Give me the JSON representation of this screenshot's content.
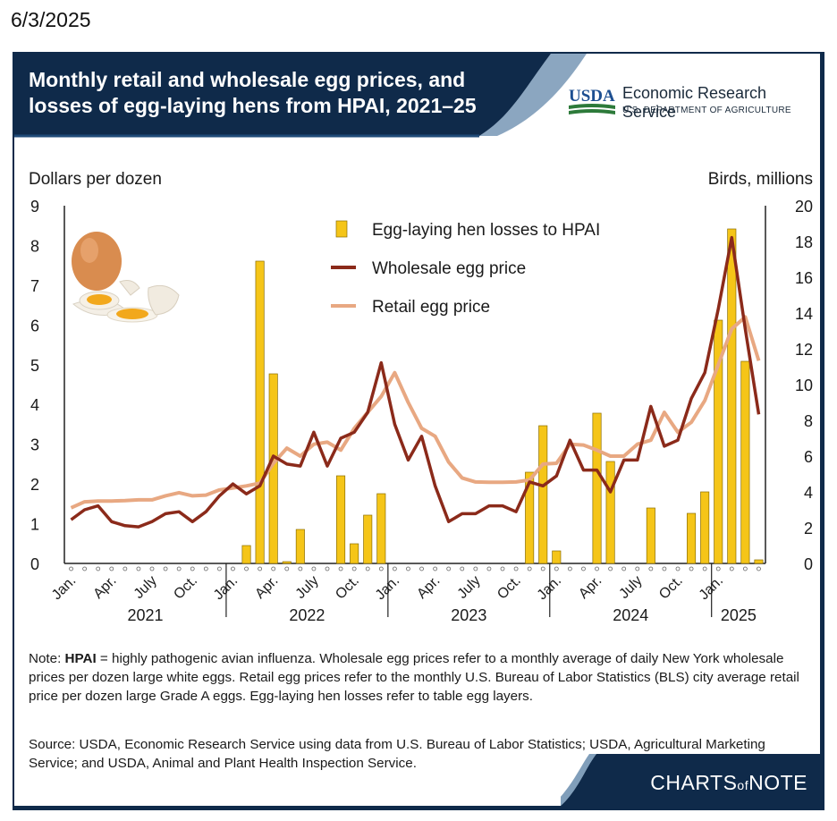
{
  "page_date": "6/3/2025",
  "title": "Monthly retail and wholesale egg prices, and losses of egg-laying hens from HPAI, 2021–25",
  "logo": {
    "usda_text": "USDA",
    "agency": "Economic Research Service",
    "department": "U.S. DEPARTMENT OF AGRICULTURE"
  },
  "colors": {
    "navy": "#0f2a4a",
    "bars": "#f5c518",
    "bar_outline": "#8a6d00",
    "wholesale": "#8b2a1a",
    "retail": "#e8a882"
  },
  "note": {
    "prefix": "Note: ",
    "term": "HPAI",
    "text": " = highly pathogenic avian influenza. Wholesale egg prices refer to a monthly average of daily New York wholesale prices per dozen large white eggs. Retail egg prices refer to the monthly U.S. Bureau of Labor Statistics (BLS) city average retail price per dozen large Grade A eggs. Egg-laying hen losses refer to table egg layers."
  },
  "source": "Source: USDA, Economic Research Service using data from U.S. Bureau of Labor Statistics; USDA, Agricultural Marketing Service; and USDA, Animal and Plant Health Inspection Service.",
  "footer": {
    "brand_left": "CHARTS",
    "brand_of": "of",
    "brand_right": "NOTE"
  },
  "chart_data": {
    "type": "bar+line",
    "ylabel_left": "Dollars per dozen",
    "ylabel_right": "Birds, millions",
    "ylim_left": [
      0,
      9
    ],
    "ylim_right": [
      0,
      20
    ],
    "yticks_left": [
      "0",
      "1",
      "2",
      "3",
      "4",
      "5",
      "6",
      "7",
      "8",
      "9"
    ],
    "yticks_right": [
      "0",
      "2",
      "4",
      "6",
      "8",
      "10",
      "12",
      "14",
      "16",
      "18",
      "20"
    ],
    "month_labels": [
      {
        "i": 0,
        "label": "Jan."
      },
      {
        "i": 3,
        "label": "Apr."
      },
      {
        "i": 6,
        "label": "July"
      },
      {
        "i": 9,
        "label": "Oct."
      },
      {
        "i": 12,
        "label": "Jan."
      },
      {
        "i": 15,
        "label": "Apr."
      },
      {
        "i": 18,
        "label": "July"
      },
      {
        "i": 21,
        "label": "Oct."
      },
      {
        "i": 24,
        "label": "Jan."
      },
      {
        "i": 27,
        "label": "Apr."
      },
      {
        "i": 30,
        "label": "July"
      },
      {
        "i": 33,
        "label": "Oct."
      },
      {
        "i": 36,
        "label": "Jan."
      },
      {
        "i": 39,
        "label": "Apr."
      },
      {
        "i": 42,
        "label": "July"
      },
      {
        "i": 45,
        "label": "Oct."
      },
      {
        "i": 48,
        "label": "Jan."
      }
    ],
    "years": [
      {
        "label": "2021",
        "start": 0,
        "end": 11
      },
      {
        "label": "2022",
        "start": 12,
        "end": 23
      },
      {
        "label": "2023",
        "start": 24,
        "end": 35
      },
      {
        "label": "2024",
        "start": 36,
        "end": 47
      },
      {
        "label": "2025",
        "start": 48,
        "end": 51
      }
    ],
    "legend": [
      {
        "key": "bars",
        "label": "Egg-laying hen losses to HPAI"
      },
      {
        "key": "wholesale",
        "label": "Wholesale egg price"
      },
      {
        "key": "retail",
        "label": "Retail egg price"
      }
    ],
    "series": [
      {
        "name": "Egg-laying hen losses to HPAI",
        "type": "bar",
        "axis": "right",
        "values": [
          0,
          0,
          0,
          0,
          0,
          0,
          0,
          0,
          0,
          0,
          0,
          0,
          0,
          1.0,
          16.9,
          10.6,
          0.1,
          1.9,
          0,
          0,
          4.9,
          1.1,
          2.7,
          3.9,
          0,
          0,
          0,
          0,
          0,
          0,
          0,
          0,
          0,
          0,
          5.1,
          7.7,
          0.7,
          0,
          0,
          8.4,
          5.7,
          0,
          0,
          3.1,
          0,
          0,
          2.8,
          4.0,
          13.6,
          18.7,
          11.3,
          0.2
        ]
      },
      {
        "name": "Wholesale egg price",
        "type": "line",
        "axis": "left",
        "values": [
          1.1,
          1.35,
          1.45,
          1.05,
          0.95,
          0.92,
          1.05,
          1.25,
          1.3,
          1.05,
          1.3,
          1.7,
          2.0,
          1.75,
          1.95,
          2.7,
          2.5,
          2.45,
          3.3,
          2.45,
          3.15,
          3.3,
          3.8,
          5.05,
          3.5,
          2.6,
          3.2,
          1.95,
          1.05,
          1.25,
          1.25,
          1.45,
          1.45,
          1.3,
          2.05,
          1.95,
          2.2,
          3.1,
          2.35,
          2.35,
          1.8,
          2.6,
          2.6,
          3.95,
          2.95,
          3.1,
          4.15,
          4.8,
          6.4,
          8.2,
          5.9,
          3.75
        ]
      },
      {
        "name": "Retail egg price",
        "type": "line",
        "axis": "left",
        "values": [
          1.4,
          1.55,
          1.57,
          1.57,
          1.58,
          1.6,
          1.6,
          1.7,
          1.78,
          1.7,
          1.72,
          1.85,
          1.9,
          1.95,
          2.02,
          2.52,
          2.9,
          2.7,
          3.0,
          3.05,
          2.85,
          3.4,
          3.8,
          4.2,
          4.8,
          4.05,
          3.4,
          3.2,
          2.55,
          2.15,
          2.05,
          2.04,
          2.04,
          2.05,
          2.1,
          2.5,
          2.52,
          3.0,
          2.98,
          2.85,
          2.7,
          2.7,
          3.0,
          3.1,
          3.8,
          3.3,
          3.55,
          4.1,
          5.0,
          5.9,
          6.2,
          5.1
        ]
      }
    ]
  }
}
